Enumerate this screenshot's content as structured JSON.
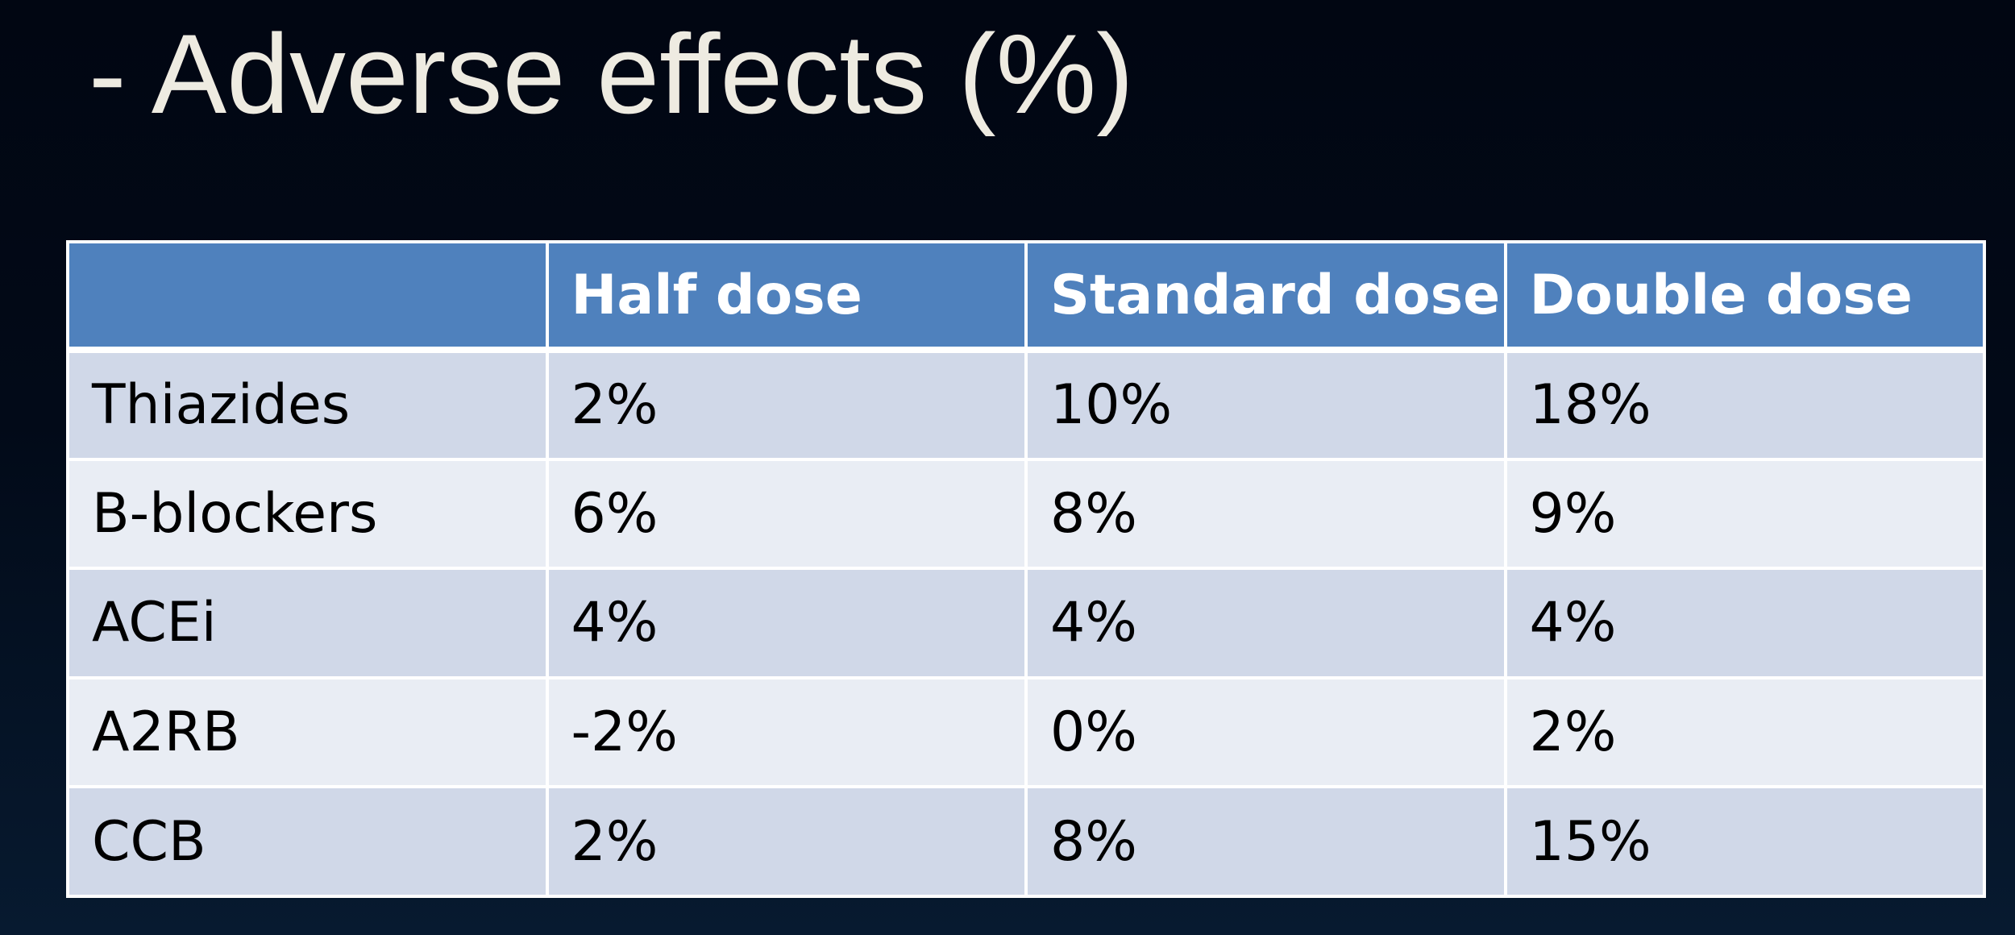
{
  "slide": {
    "title": "- Adverse effects (%)"
  },
  "table": {
    "headers": [
      "",
      "Half dose",
      "Standard dose",
      "Double dose"
    ],
    "rows": [
      [
        "Thiazides",
        "2%",
        "10%",
        "18%"
      ],
      [
        "B-blockers",
        "6%",
        "8%",
        "9%"
      ],
      [
        "ACEi",
        "4%",
        "4%",
        "4%"
      ],
      [
        "A2RB",
        "-2%",
        "0%",
        "2%"
      ],
      [
        "CCB",
        "2%",
        "8%",
        "15%"
      ]
    ]
  },
  "colors": {
    "background": "#010612",
    "title_text": "#eeebe1",
    "header_fill": "#4f81bd",
    "row_band_dark": "#d0d8e8",
    "row_band_light": "#e9edf4",
    "grid_lines": "#ffffff"
  }
}
